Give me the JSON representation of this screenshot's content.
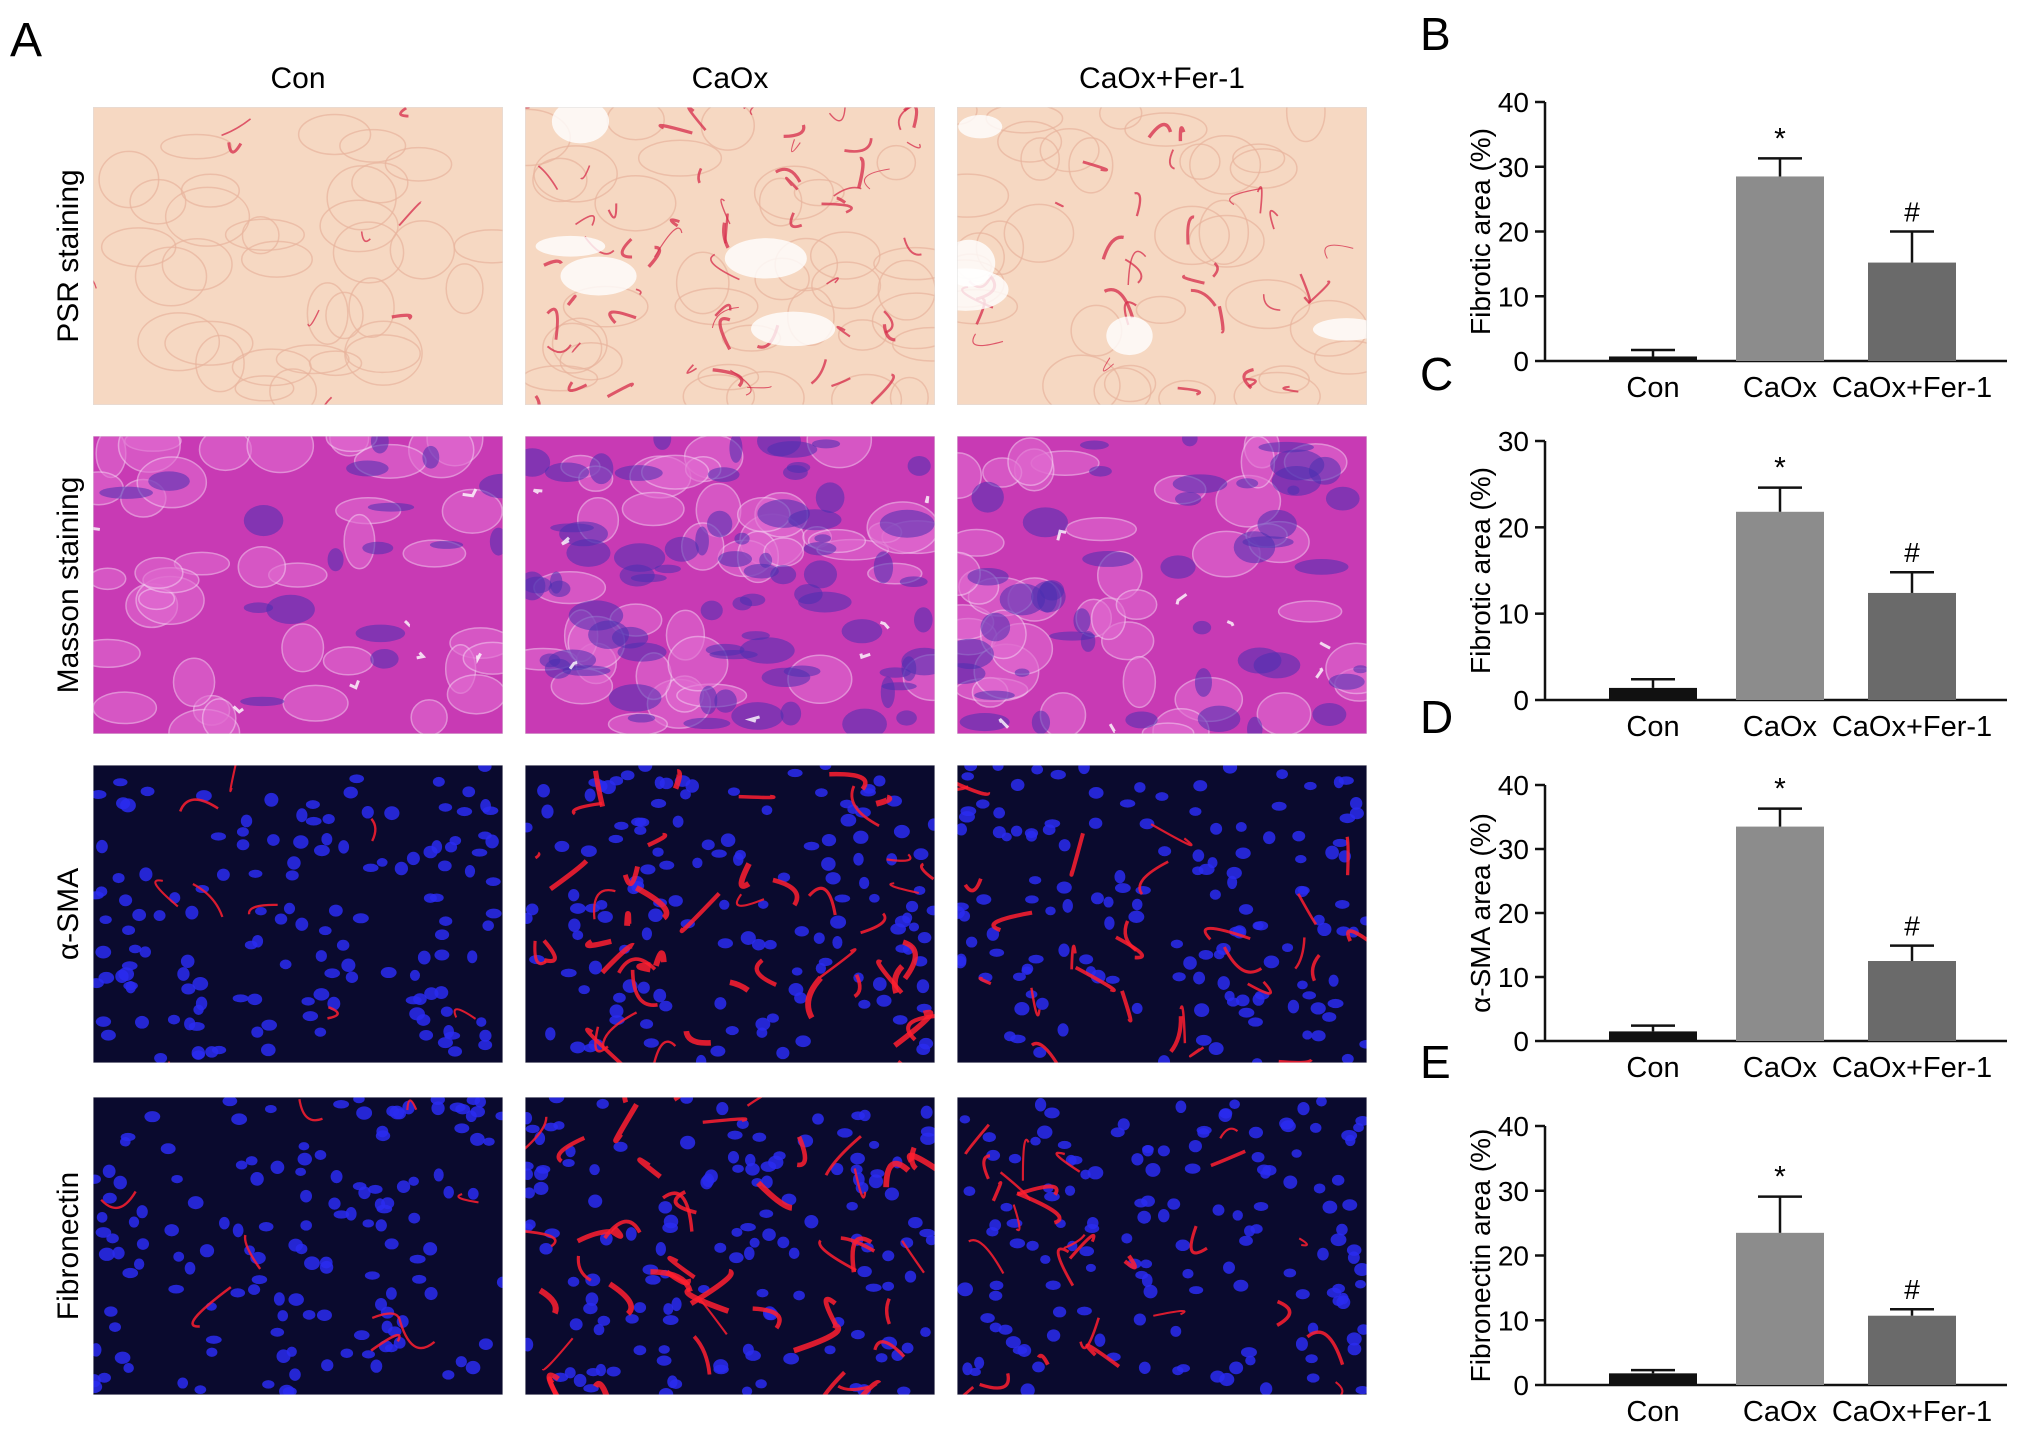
{
  "panel_a": {
    "letter": "A",
    "columns": [
      "Con",
      "CaOx",
      "CaOx+Fer-1"
    ],
    "rows": [
      {
        "label": "PSR staining",
        "kind": "psr"
      },
      {
        "label": "Masson staining",
        "kind": "masson"
      },
      {
        "label": "α-SMA",
        "kind": "fluor"
      },
      {
        "label": "Fibronectin",
        "kind": "fluor"
      }
    ],
    "image_colors": {
      "psr_base": "#f6d8c2",
      "psr_fiber": "#d62b4a",
      "masson_base": "#c83ab4",
      "masson_fiber": "#4a2fb0",
      "fluor_base": "#0a0a2e",
      "fluor_nuclei": "#2a2cf0",
      "fluor_signal": "#ff1f2f"
    }
  },
  "chart_data": [
    {
      "letter": "B",
      "type": "bar",
      "categories": [
        "Con",
        "CaOx",
        "CaOx+Fer-1"
      ],
      "values": [
        0.7,
        28.5,
        15.2
      ],
      "errors": [
        1.0,
        2.8,
        4.8
      ],
      "ylabel": "Fibrotic area (%)",
      "ylim": [
        0,
        40
      ],
      "yticks": [
        0,
        10,
        20,
        30,
        40
      ],
      "annotations": [
        "",
        "*",
        "#"
      ],
      "bar_colors": [
        "#111111",
        "#8c8c8c",
        "#6a6a6a"
      ]
    },
    {
      "letter": "C",
      "type": "bar",
      "categories": [
        "Con",
        "CaOx",
        "CaOx+Fer-1"
      ],
      "values": [
        1.4,
        21.8,
        12.4
      ],
      "errors": [
        1.0,
        2.8,
        2.4
      ],
      "ylabel": "Fibrotic area (%)",
      "ylim": [
        0,
        30
      ],
      "yticks": [
        0,
        10,
        20,
        30
      ],
      "annotations": [
        "",
        "*",
        "#"
      ],
      "bar_colors": [
        "#111111",
        "#8c8c8c",
        "#6a6a6a"
      ]
    },
    {
      "letter": "D",
      "type": "bar",
      "categories": [
        "Con",
        "CaOx",
        "CaOx+Fer-1"
      ],
      "values": [
        1.5,
        33.5,
        12.5
      ],
      "errors": [
        0.9,
        2.8,
        2.4
      ],
      "ylabel": "α-SMA area (%)",
      "ylim": [
        0,
        40
      ],
      "yticks": [
        0,
        10,
        20,
        30,
        40
      ],
      "annotations": [
        "",
        "*",
        "#"
      ],
      "bar_colors": [
        "#111111",
        "#8c8c8c",
        "#6a6a6a"
      ]
    },
    {
      "letter": "E",
      "type": "bar",
      "categories": [
        "Con",
        "CaOx",
        "CaOx+Fer-1"
      ],
      "values": [
        1.8,
        23.5,
        10.7
      ],
      "errors": [
        0.5,
        5.6,
        1.0
      ],
      "ylabel": "Fibronectin area (%)",
      "ylim": [
        0,
        40
      ],
      "yticks": [
        0,
        10,
        20,
        30,
        40
      ],
      "annotations": [
        "",
        "*",
        "#"
      ],
      "bar_colors": [
        "#111111",
        "#8c8c8c",
        "#6a6a6a"
      ]
    }
  ]
}
